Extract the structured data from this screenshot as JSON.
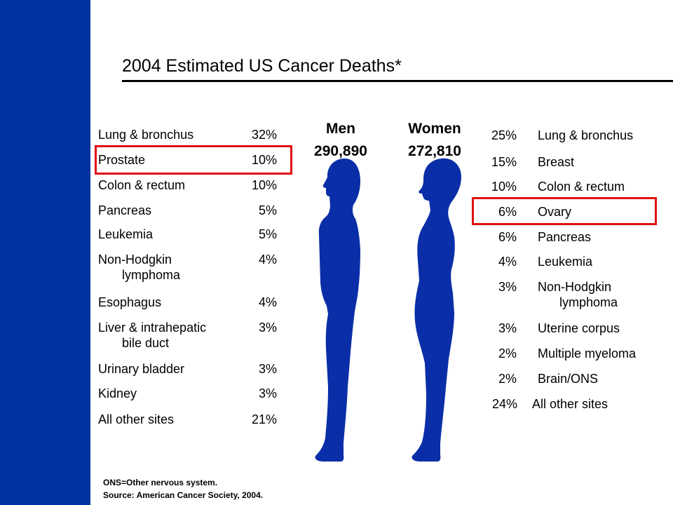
{
  "title": "2004 Estimated US Cancer Deaths*",
  "chart_data": {
    "type": "table",
    "title": "2004 Estimated US Cancer Deaths*",
    "series": [
      {
        "name": "Men",
        "total": "290,890",
        "rows": [
          {
            "site": "Lung & bronchus",
            "pct": "32%"
          },
          {
            "site": "Prostate",
            "pct": "10%",
            "highlighted": true
          },
          {
            "site": "Colon & rectum",
            "pct": "10%"
          },
          {
            "site": "Pancreas",
            "pct": "5%"
          },
          {
            "site": "Leukemia",
            "pct": "5%"
          },
          {
            "site": "Non-Hodgkin",
            "site_line2": "lymphoma",
            "pct": "4%"
          },
          {
            "site": "Esophagus",
            "pct": "4%"
          },
          {
            "site": "Liver & intrahepatic",
            "site_line2": "bile duct",
            "pct": "3%"
          },
          {
            "site": "Urinary bladder",
            "pct": "3%"
          },
          {
            "site": "Kidney",
            "pct": "3%"
          },
          {
            "site": "All other sites",
            "pct": "21%"
          }
        ]
      },
      {
        "name": "Women",
        "total": "272,810",
        "rows": [
          {
            "site": "Lung & bronchus",
            "pct": "25%"
          },
          {
            "site": "Breast",
            "pct": "15%"
          },
          {
            "site": "Colon & rectum",
            "pct": "10%"
          },
          {
            "site": "Ovary",
            "pct": "6%",
            "highlighted": true
          },
          {
            "site": "Pancreas",
            "pct": "6%"
          },
          {
            "site": "Leukemia",
            "pct": "4%"
          },
          {
            "site": "Non-Hodgkin",
            "site_line2": "lymphoma",
            "pct": "3%"
          },
          {
            "site": "Uterine corpus",
            "pct": "3%"
          },
          {
            "site": "Multiple myeloma",
            "pct": "2%"
          },
          {
            "site": "Brain/ONS",
            "pct": "2%"
          },
          {
            "site": "All other sites",
            "pct": "24%"
          }
        ]
      }
    ]
  },
  "footnotes": [
    "ONS=Other nervous system.",
    "Source: American Cancer Society, 2004."
  ],
  "colors": {
    "sidebar": "#0033a0",
    "silhouette": "#0a2ea8",
    "highlight": "#e01010"
  },
  "icons": {
    "men": "male-silhouette-icon",
    "women": "female-silhouette-icon"
  }
}
